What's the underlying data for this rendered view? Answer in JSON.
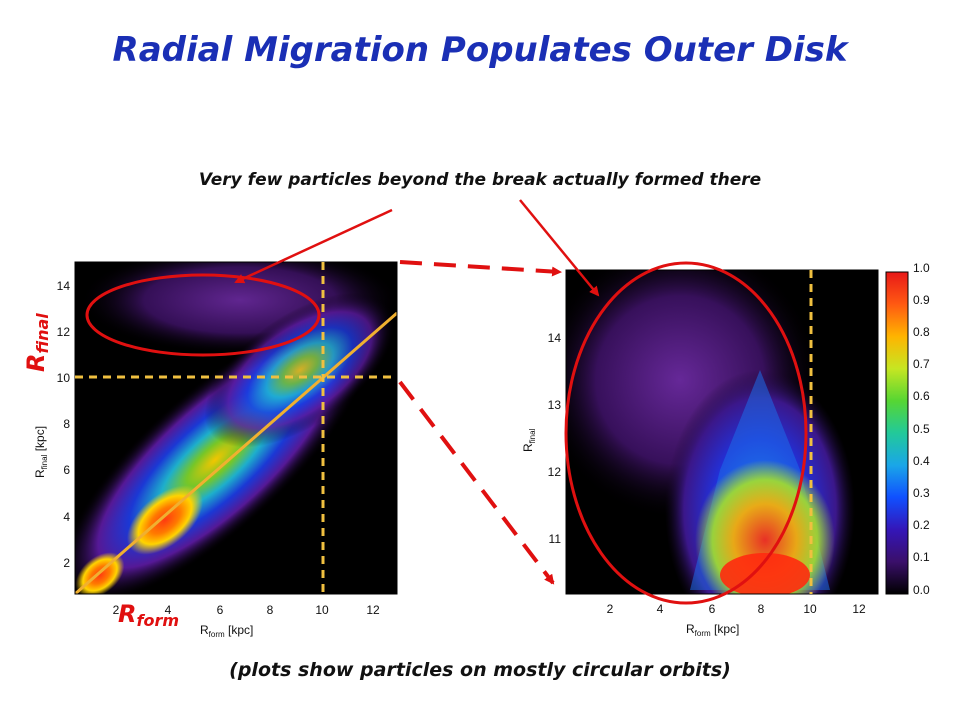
{
  "slide": {
    "title": "Radial Migration Populates Outer Disk",
    "subtitle": "Very few particles beyond the break actually formed there",
    "caption": "(plots show particles on mostly circular orbits)",
    "label_rfinal_main": "R",
    "label_rfinal_sub": "final",
    "label_rform_main": "R",
    "label_rform_sub": "form"
  },
  "left_plot": {
    "xlabel_main": "R",
    "xlabel_sub": "form",
    "xlabel_unit": " [kpc]",
    "ylabel_main": "R",
    "ylabel_sub": "final",
    "ylabel_unit": " [kpc]",
    "xticks": [
      "2",
      "4",
      "6",
      "8",
      "10",
      "12"
    ],
    "yticks": [
      "2",
      "4",
      "6",
      "8",
      "10",
      "12",
      "14"
    ]
  },
  "right_plot": {
    "xlabel_main": "R",
    "xlabel_sub": "form",
    "xlabel_unit": " [kpc]",
    "ylabel_main": "R",
    "ylabel_sub": "final",
    "xticks": [
      "2",
      "4",
      "6",
      "8",
      "10",
      "12"
    ],
    "yticks": [
      "11",
      "12",
      "13",
      "14"
    ]
  },
  "colorbar": {
    "ticks": [
      "1.0",
      "0.9",
      "0.8",
      "0.7",
      "0.6",
      "0.5",
      "0.4",
      "0.3",
      "0.2",
      "0.1",
      "0.0"
    ]
  },
  "colors": {
    "title": "#1a2fb5",
    "annotation": "#e01010",
    "dashed_guides": "#f0c040"
  }
}
